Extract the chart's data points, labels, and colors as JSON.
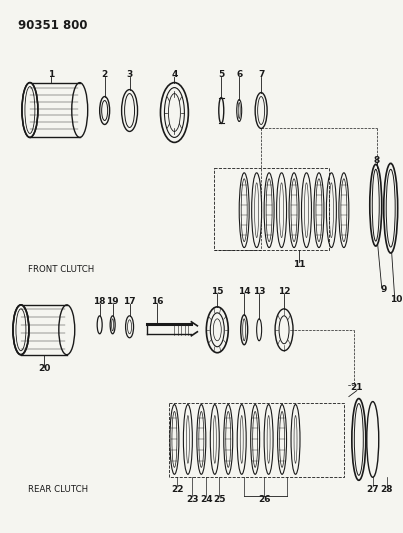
{
  "title": "90351 800",
  "bg_color": "#f5f5f0",
  "line_color": "#1a1a1a",
  "front_clutch_label": "FRONT CLUTCH",
  "rear_clutch_label": "REAR CLUTCH",
  "fig_width": 4.03,
  "fig_height": 5.33,
  "dpi": 100
}
